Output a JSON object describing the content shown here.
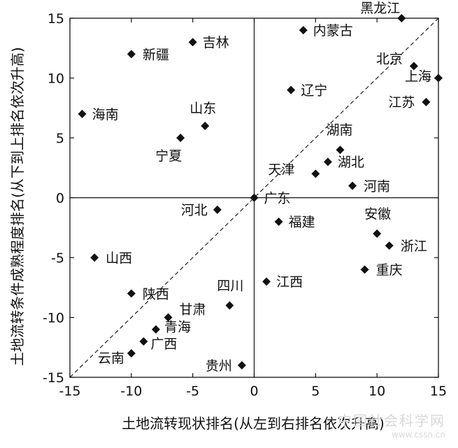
{
  "chart_data": {
    "type": "scatter",
    "xlabel": "土地流转现状排名(从左到右排名依次升高)",
    "ylabel": "土地流转条件成熟程度排名(从下到上排名依次升高)",
    "xlim": [
      -15,
      15
    ],
    "ylim": [
      -15,
      15
    ],
    "xticks": [
      -15,
      -10,
      -5,
      0,
      5,
      10,
      15
    ],
    "yticks": [
      -15,
      -10,
      -5,
      0,
      5,
      10,
      15
    ],
    "reference_line": "y = x (dashed)",
    "quadrant_lines": [
      0,
      0
    ],
    "points": [
      {
        "name": "黑龙江",
        "x": 12,
        "y": 15
      },
      {
        "name": "内蒙古",
        "x": 4,
        "y": 14
      },
      {
        "name": "吉林",
        "x": -5,
        "y": 13
      },
      {
        "name": "新疆",
        "x": -10,
        "y": 12
      },
      {
        "name": "北京",
        "x": 13,
        "y": 11
      },
      {
        "name": "上海",
        "x": 15,
        "y": 10
      },
      {
        "name": "辽宁",
        "x": 3,
        "y": 9
      },
      {
        "name": "江苏",
        "x": 14,
        "y": 8
      },
      {
        "name": "海南",
        "x": -14,
        "y": 7
      },
      {
        "name": "山东",
        "x": -4,
        "y": 6
      },
      {
        "name": "宁夏",
        "x": -6,
        "y": 5
      },
      {
        "name": "湖南",
        "x": 7,
        "y": 4
      },
      {
        "name": "湖北",
        "x": 6,
        "y": 3
      },
      {
        "name": "天津",
        "x": 5,
        "y": 2
      },
      {
        "name": "河南",
        "x": 8,
        "y": 1
      },
      {
        "name": "广东",
        "x": 0,
        "y": 0
      },
      {
        "name": "河北",
        "x": -3,
        "y": -1
      },
      {
        "name": "福建",
        "x": 2,
        "y": -2
      },
      {
        "name": "安徽",
        "x": 10,
        "y": -3
      },
      {
        "name": "浙江",
        "x": 11,
        "y": -4
      },
      {
        "name": "山西",
        "x": -13,
        "y": -5
      },
      {
        "name": "重庆",
        "x": 9,
        "y": -6
      },
      {
        "name": "江西",
        "x": 1,
        "y": -7
      },
      {
        "name": "陕西",
        "x": -10,
        "y": -8
      },
      {
        "name": "四川",
        "x": -2,
        "y": -9
      },
      {
        "name": "甘肃",
        "x": -7,
        "y": -10
      },
      {
        "name": "青海",
        "x": -8,
        "y": -11
      },
      {
        "name": "广西",
        "x": -9,
        "y": -12
      },
      {
        "name": "云南",
        "x": -10,
        "y": -13
      },
      {
        "name": "贵州",
        "x": -1,
        "y": -14
      }
    ]
  },
  "watermark": {
    "line1": "中国社会科学网",
    "line2": "www.cssn.cn"
  }
}
